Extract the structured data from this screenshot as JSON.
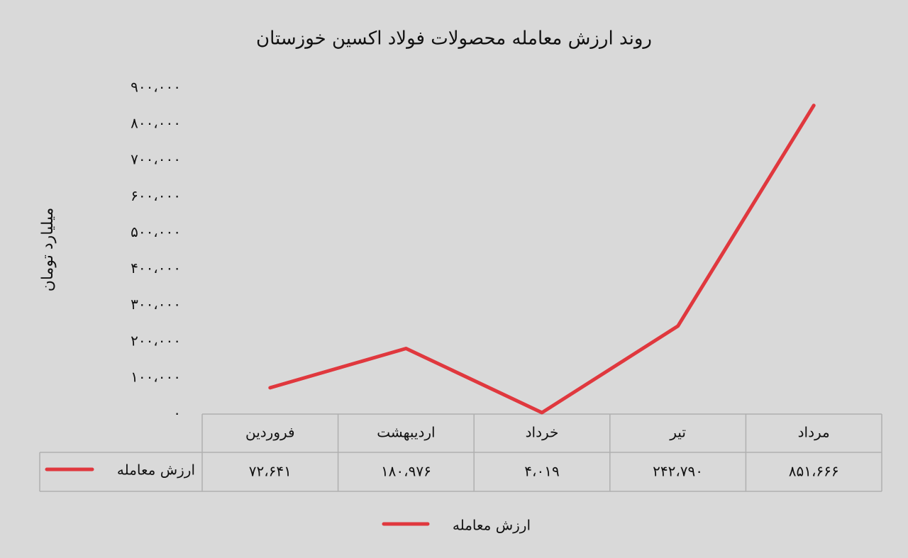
{
  "chart_data": {
    "type": "line",
    "title": "روند ارزش معامله محصولات فولاد اکسین خوزستان",
    "y_label": "میلیارد تومان",
    "categories": [
      "فروردین",
      "اردیبهشت",
      "خرداد",
      "تیر",
      "مرداد"
    ],
    "series": [
      {
        "name": "ارزش معامله",
        "color": "#e0383e",
        "values": [
          72641,
          180976,
          4019,
          242790,
          851666
        ],
        "value_labels": [
          "۷۲،۶۴۱",
          "۱۸۰،۹۷۶",
          "۴،۰۱۹",
          "۲۴۲،۷۹۰",
          "۸۵۱،۶۶۶"
        ]
      }
    ],
    "ylim": [
      0,
      900000
    ],
    "yticks": [
      {
        "value": 0,
        "label": "۰"
      },
      {
        "value": 100000,
        "label": "۱۰۰،۰۰۰"
      },
      {
        "value": 200000,
        "label": "۲۰۰،۰۰۰"
      },
      {
        "value": 300000,
        "label": "۳۰۰،۰۰۰"
      },
      {
        "value": 400000,
        "label": "۴۰۰،۰۰۰"
      },
      {
        "value": 500000,
        "label": "۵۰۰،۰۰۰"
      },
      {
        "value": 600000,
        "label": "۶۰۰،۰۰۰"
      },
      {
        "value": 700000,
        "label": "۷۰۰،۰۰۰"
      },
      {
        "value": 800000,
        "label": "۸۰۰،۰۰۰"
      },
      {
        "value": 900000,
        "label": "۹۰۰،۰۰۰"
      }
    ],
    "grid": false,
    "legend": "bottom"
  }
}
